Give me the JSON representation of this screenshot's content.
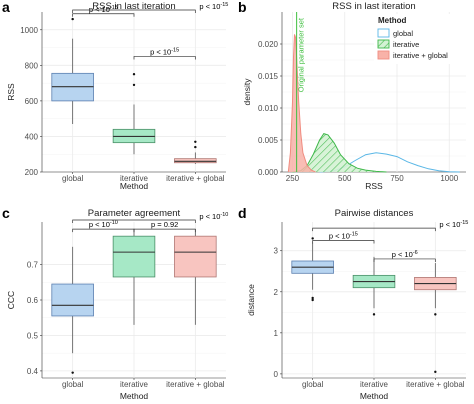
{
  "chart_data": [
    {
      "panel": "a",
      "type": "boxplot",
      "title": "RSS in last iteration",
      "xlabel": "Method",
      "ylabel": "RSS",
      "categories": [
        "global",
        "iterative",
        "iterative + global"
      ],
      "colors": [
        "#b7d4f0",
        "#a6e8c6",
        "#f8c5c0"
      ],
      "edge_colors": [
        "#5b7fb0",
        "#4a8f68",
        "#b07874"
      ],
      "ylim": [
        200,
        1100
      ],
      "yticks": [
        200,
        400,
        600,
        800,
        1000
      ],
      "boxes": [
        {
          "min": 470,
          "q1": 600,
          "median": 680,
          "q3": 755,
          "max": 950,
          "outliers": [
            1060
          ]
        },
        {
          "min": 300,
          "q1": 365,
          "median": 400,
          "q3": 440,
          "max": 580,
          "outliers": [
            690,
            750
          ]
        },
        {
          "min": 245,
          "q1": 252,
          "median": 260,
          "q3": 275,
          "max": 310,
          "outliers": [
            340,
            370
          ]
        }
      ],
      "brackets": [
        {
          "from": 0,
          "to": 1,
          "label": "p < 10",
          "exp": "-15",
          "y": 1090
        },
        {
          "from": 0,
          "to": 2,
          "label": "p < 10",
          "exp": "-15",
          "y": 1140
        },
        {
          "from": 1,
          "to": 2,
          "label": "p < 10",
          "exp": "-15",
          "y": 850
        }
      ]
    },
    {
      "panel": "b",
      "type": "density",
      "title": "RSS in last iteration",
      "xlabel": "RSS",
      "ylabel": "density",
      "xlim": [
        200,
        1080
      ],
      "ylim": [
        0,
        0.025
      ],
      "xticks": [
        250,
        500,
        750,
        1000
      ],
      "yticks": [
        0,
        0.005,
        0.01,
        0.015,
        0.02
      ],
      "ytick_labels": [
        "0.000",
        "0.005",
        "0.010",
        "0.015",
        "0.020"
      ],
      "vline": {
        "x": 270,
        "label": "Original parameter set",
        "color": "#3fbf3f"
      },
      "legend": {
        "title": "Method",
        "position": "top-right"
      },
      "series": [
        {
          "name": "global",
          "color": "#5ab7e6",
          "fill": "none",
          "x": [
            380,
            450,
            500,
            550,
            600,
            650,
            700,
            750,
            800,
            850,
            900,
            950,
            1000,
            1050
          ],
          "y": [
            0,
            0.0002,
            0.0008,
            0.0018,
            0.0027,
            0.003,
            0.0028,
            0.0024,
            0.0016,
            0.001,
            0.0005,
            0.0002,
            5e-05,
            0
          ]
        },
        {
          "name": "iterative",
          "color": "#3fb84a",
          "fill": "hatch",
          "x": [
            250,
            290,
            320,
            350,
            380,
            400,
            420,
            450,
            480,
            520,
            560,
            600,
            650,
            700
          ],
          "y": [
            0,
            0.0002,
            0.001,
            0.0028,
            0.005,
            0.006,
            0.0058,
            0.0045,
            0.0027,
            0.0013,
            0.0006,
            0.0003,
            0.0001,
            0
          ]
        },
        {
          "name": "iterative + global",
          "color": "#f08c80",
          "fill": "#f8b2a8",
          "x": [
            230,
            240,
            250,
            255,
            260,
            265,
            270,
            280,
            290,
            300,
            320,
            340,
            360
          ],
          "y": [
            0,
            0.003,
            0.011,
            0.018,
            0.0215,
            0.021,
            0.018,
            0.011,
            0.006,
            0.003,
            0.001,
            0.0003,
            0
          ]
        }
      ]
    },
    {
      "panel": "c",
      "type": "boxplot",
      "title": "Parameter agreement",
      "xlabel": "Method",
      "ylabel": "CCC",
      "categories": [
        "global",
        "iterative",
        "iterative + global"
      ],
      "colors": [
        "#b7d4f0",
        "#a6e8c6",
        "#f8c5c0"
      ],
      "edge_colors": [
        "#5b7fb0",
        "#4a8f68",
        "#b07874"
      ],
      "ylim": [
        0.38,
        0.82
      ],
      "yticks": [
        0.4,
        0.5,
        0.6,
        0.7
      ],
      "boxes": [
        {
          "min": 0.45,
          "q1": 0.555,
          "median": 0.585,
          "q3": 0.645,
          "max": 0.75,
          "outliers": [
            0.395
          ]
        },
        {
          "min": 0.53,
          "q1": 0.665,
          "median": 0.735,
          "q3": 0.78,
          "max": 0.8,
          "outliers": []
        },
        {
          "min": 0.53,
          "q1": 0.665,
          "median": 0.735,
          "q3": 0.78,
          "max": 0.8,
          "outliers": []
        }
      ],
      "brackets": [
        {
          "from": 0,
          "to": 1,
          "label": "p < 10",
          "exp": "-10",
          "y": 0.8
        },
        {
          "from": 0,
          "to": 2,
          "label": "p < 10",
          "exp": "-10",
          "y": 0.835
        },
        {
          "from": 1,
          "to": 2,
          "label": "p = 0.92",
          "exp": "",
          "y": 0.8
        }
      ]
    },
    {
      "panel": "d",
      "type": "boxplot",
      "title": "Pairwise distances",
      "xlabel": "Method",
      "ylabel": "distance",
      "categories": [
        "global",
        "iterative",
        "iterative + global"
      ],
      "colors": [
        "#b7d4f0",
        "#a6e8c6",
        "#f8c5c0"
      ],
      "edge_colors": [
        "#5b7fb0",
        "#4a8f68",
        "#b07874"
      ],
      "ylim": [
        -0.1,
        3.7
      ],
      "yticks": [
        0,
        1,
        2,
        3
      ],
      "boxes": [
        {
          "min": 2.05,
          "q1": 2.45,
          "median": 2.6,
          "q3": 2.75,
          "max": 3.2,
          "outliers": [
            1.85,
            1.8,
            3.3
          ]
        },
        {
          "min": 1.6,
          "q1": 2.1,
          "median": 2.25,
          "q3": 2.4,
          "max": 2.85,
          "outliers": [
            1.45
          ]
        },
        {
          "min": 1.6,
          "q1": 2.05,
          "median": 2.2,
          "q3": 2.35,
          "max": 2.7,
          "outliers": [
            1.45,
            0.05
          ]
        }
      ],
      "brackets": [
        {
          "from": 0,
          "to": 1,
          "label": "p < 10",
          "exp": "-15",
          "y": 3.25
        },
        {
          "from": 0,
          "to": 2,
          "label": "p < 10",
          "exp": "-15",
          "y": 3.55
        },
        {
          "from": 1,
          "to": 2,
          "label": "p < 10",
          "exp": "-6",
          "y": 2.8
        }
      ]
    }
  ]
}
